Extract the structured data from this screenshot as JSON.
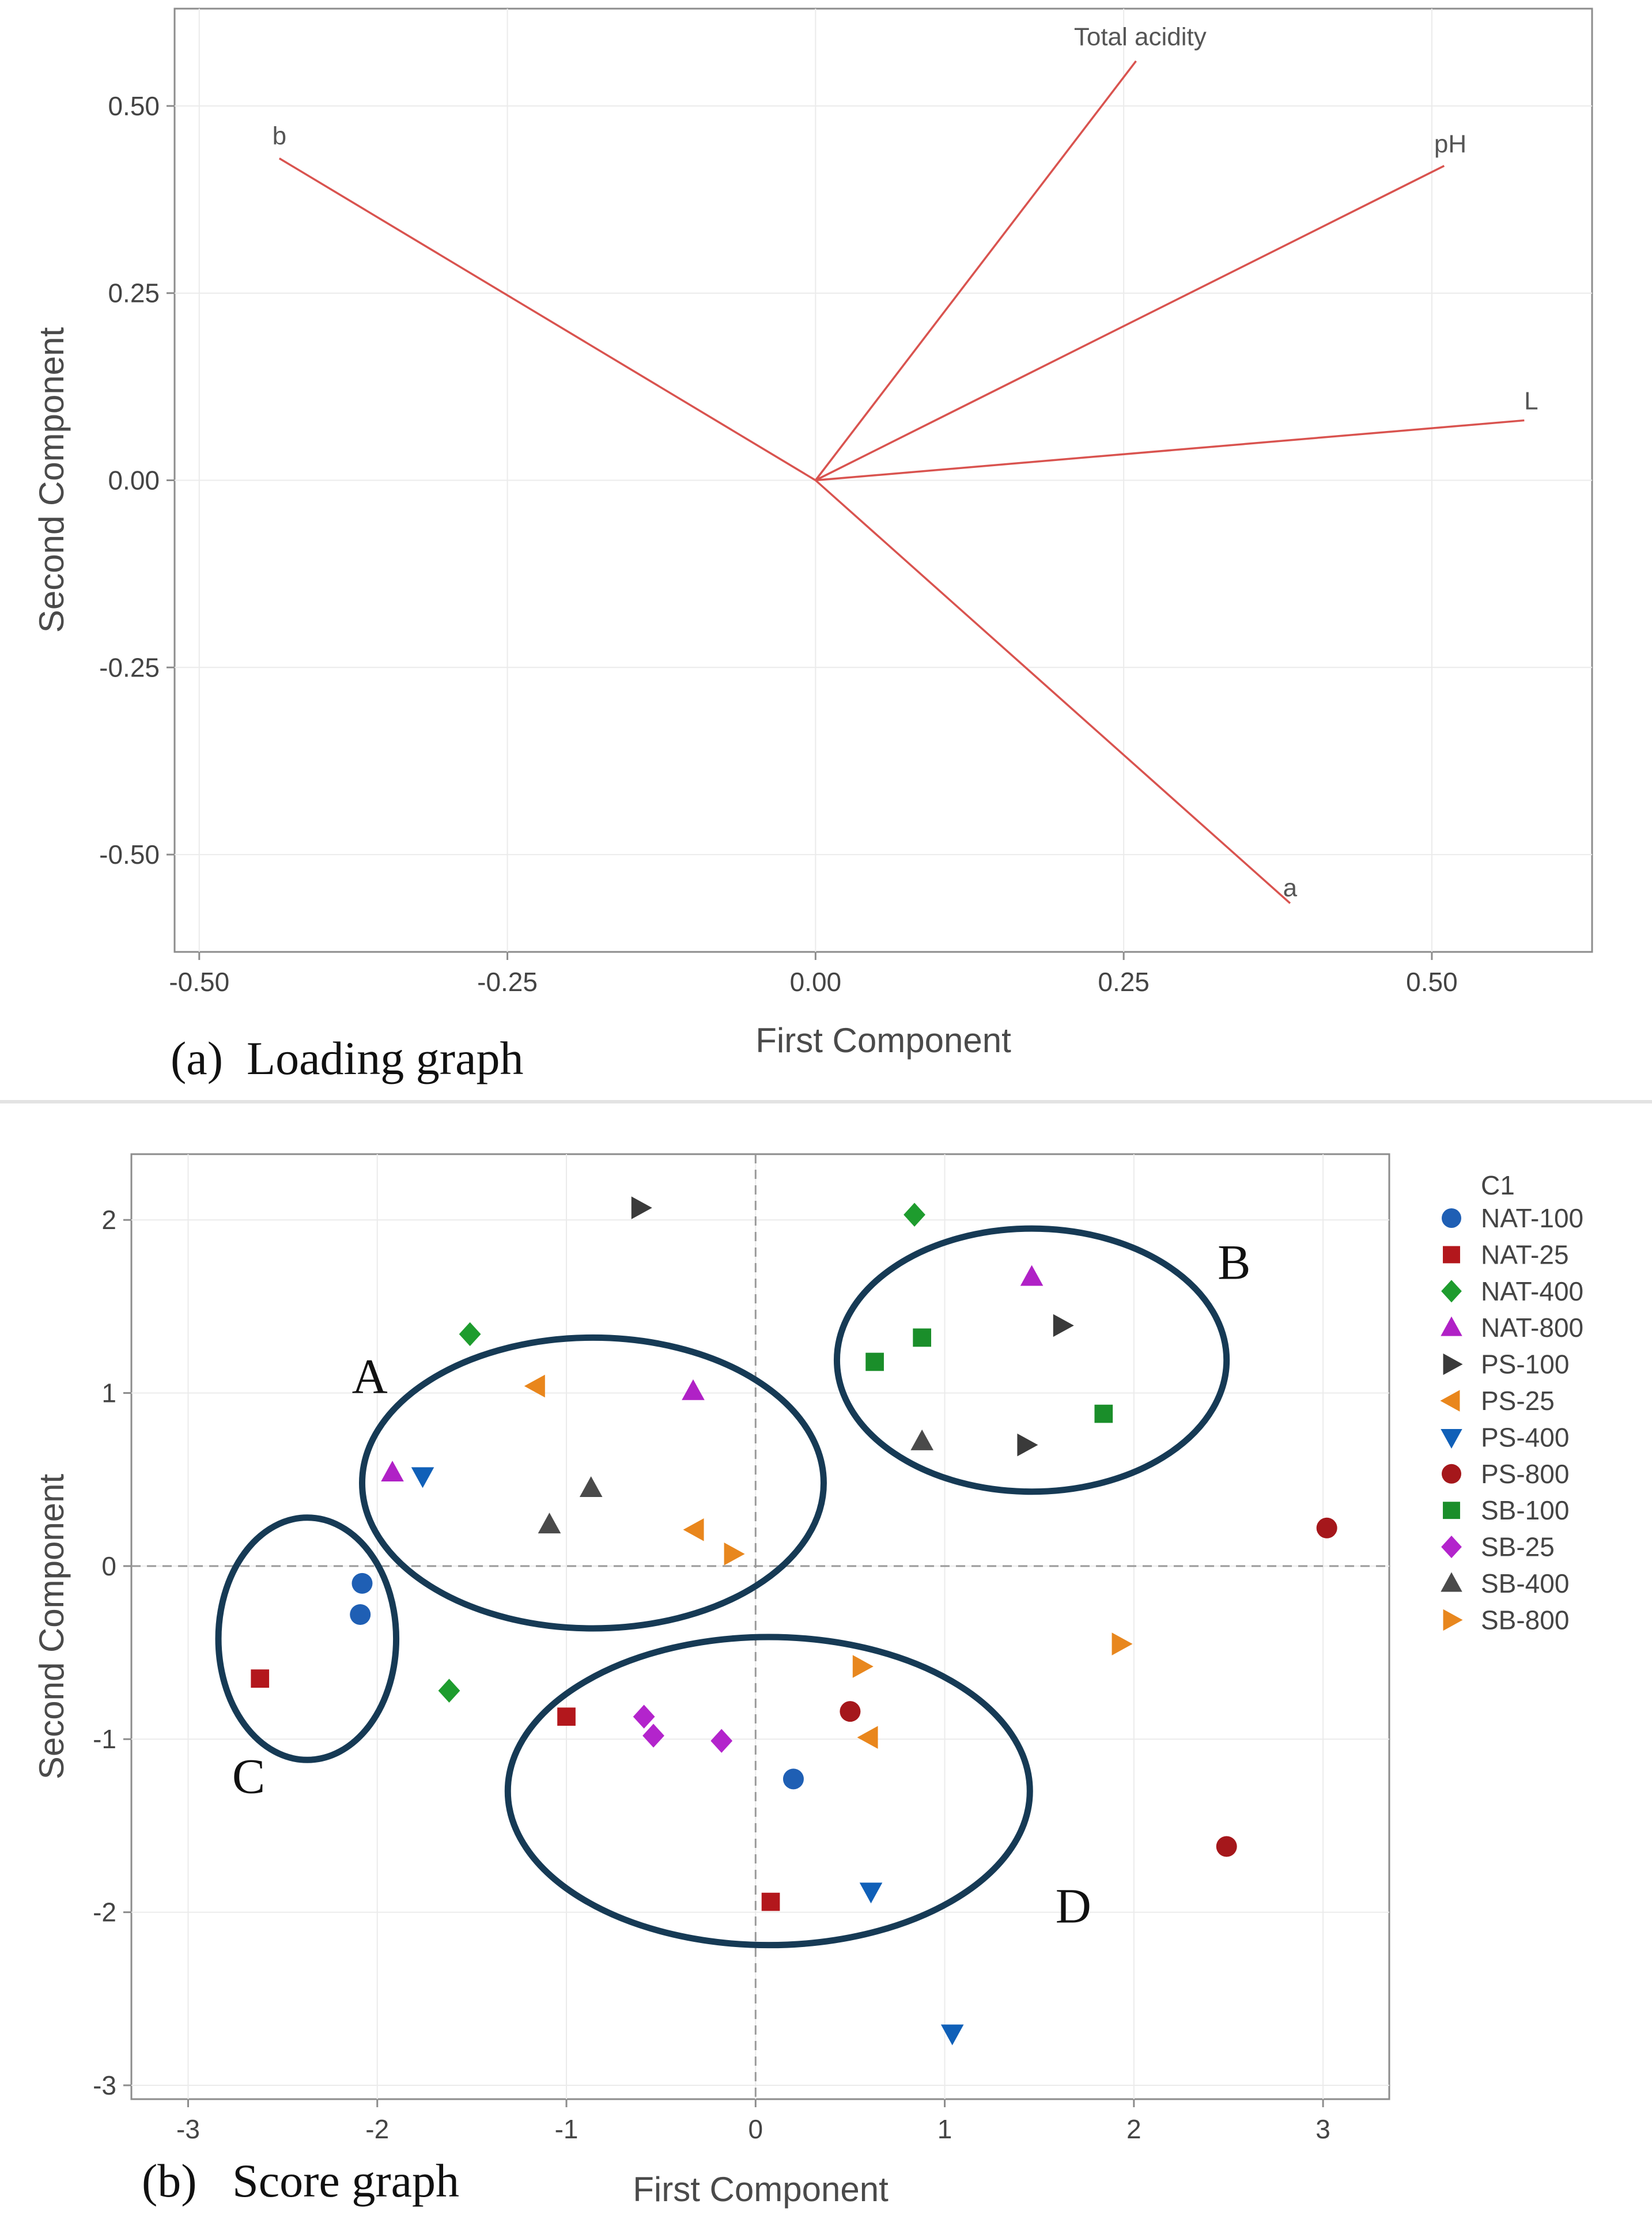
{
  "chart_data": [
    {
      "type": "line",
      "subtype": "pca-loading-plot",
      "caption": "(a)  Loading graph",
      "xlabel": "First Component",
      "ylabel": "Second Component",
      "xlim": [
        -0.52,
        0.63
      ],
      "ylim": [
        -0.63,
        0.63
      ],
      "xticks": [
        -0.5,
        -0.25,
        0.0,
        0.25,
        0.5
      ],
      "xtick_labels": [
        "-0.50",
        "-0.25",
        "0.00",
        "0.25",
        "0.50"
      ],
      "yticks": [
        0.5,
        0.25,
        0.0,
        -0.25,
        -0.5
      ],
      "ytick_labels": [
        "0.50",
        "0.25",
        "0.00",
        "-0.25",
        "-0.50"
      ],
      "grid": true,
      "line_color": "#d9534f",
      "vectors": [
        {
          "label": "Total acidity",
          "x": 0.26,
          "y": 0.56
        },
        {
          "label": "pH",
          "x": 0.51,
          "y": 0.42
        },
        {
          "label": "L",
          "x": 0.575,
          "y": 0.08
        },
        {
          "label": "a",
          "x": 0.385,
          "y": -0.565
        },
        {
          "label": "b",
          "x": -0.435,
          "y": 0.43
        }
      ]
    },
    {
      "type": "scatter",
      "subtype": "pca-score-plot",
      "caption": "(b)   Score graph",
      "xlabel": "First Component",
      "ylabel": "Second Component",
      "xlim": [
        -3.3,
        3.35
      ],
      "ylim": [
        -3.08,
        2.38
      ],
      "xticks": [
        -3,
        -2,
        -1,
        0,
        1,
        2,
        3
      ],
      "xtick_labels": [
        "-3",
        "-2",
        "-1",
        "0",
        "1",
        "2",
        "3"
      ],
      "yticks": [
        2,
        1,
        0,
        -1,
        -2,
        -3
      ],
      "ytick_labels": [
        "2",
        "1",
        "0",
        "-1",
        "-2",
        "-3"
      ],
      "grid": true,
      "reference_lines": {
        "x": 0,
        "y": 0
      },
      "legend_title": "C1",
      "legend_position": "right",
      "series": [
        {
          "name": "NAT-100",
          "marker": "circle",
          "color": "#1f5fb4",
          "points": [
            [
              -2.08,
              -0.1
            ],
            [
              -2.09,
              -0.28
            ],
            [
              0.2,
              -1.23
            ]
          ]
        },
        {
          "name": "NAT-25",
          "marker": "square",
          "color": "#b3171c",
          "points": [
            [
              -2.62,
              -0.65
            ],
            [
              -1.0,
              -0.87
            ],
            [
              0.08,
              -1.94
            ]
          ]
        },
        {
          "name": "NAT-400",
          "marker": "diamond",
          "color": "#1e9c2e",
          "points": [
            [
              -1.51,
              1.34
            ],
            [
              -1.62,
              -0.72
            ],
            [
              0.84,
              2.03
            ]
          ]
        },
        {
          "name": "NAT-800",
          "marker": "triangle-up",
          "color": "#b021c6",
          "points": [
            [
              -1.92,
              0.54
            ],
            [
              -0.33,
              1.01
            ],
            [
              1.46,
              1.67
            ]
          ]
        },
        {
          "name": "PS-100",
          "marker": "triangle-right",
          "color": "#3a3a3a",
          "points": [
            [
              -0.61,
              2.07
            ],
            [
              1.62,
              1.39
            ],
            [
              1.43,
              0.7
            ]
          ]
        },
        {
          "name": "PS-25",
          "marker": "triangle-left",
          "color": "#e9861c",
          "points": [
            [
              -1.16,
              1.04
            ],
            [
              -0.32,
              0.21
            ],
            [
              0.6,
              -0.99
            ]
          ]
        },
        {
          "name": "PS-400",
          "marker": "triangle-down",
          "color": "#1060b8",
          "points": [
            [
              -1.76,
              0.52
            ],
            [
              0.61,
              -1.88
            ],
            [
              1.04,
              -2.7
            ]
          ]
        },
        {
          "name": "PS-800",
          "marker": "circle",
          "color": "#a5171b",
          "points": [
            [
              3.02,
              0.22
            ],
            [
              0.5,
              -0.84
            ],
            [
              2.49,
              -1.62
            ]
          ]
        },
        {
          "name": "SB-100",
          "marker": "square",
          "color": "#1a8e2a",
          "points": [
            [
              0.88,
              1.32
            ],
            [
              0.63,
              1.18
            ],
            [
              1.84,
              0.88
            ]
          ]
        },
        {
          "name": "SB-25",
          "marker": "diamond",
          "color": "#b324cc",
          "points": [
            [
              -0.59,
              -0.87
            ],
            [
              -0.54,
              -0.98
            ],
            [
              -0.18,
              -1.01
            ]
          ]
        },
        {
          "name": "SB-400",
          "marker": "triangle-up",
          "color": "#4a4a4a",
          "points": [
            [
              -0.87,
              0.45
            ],
            [
              -1.09,
              0.24
            ],
            [
              0.88,
              0.72
            ]
          ]
        },
        {
          "name": "SB-800",
          "marker": "triangle-right",
          "color": "#e8871e",
          "points": [
            [
              -0.12,
              0.07
            ],
            [
              0.56,
              -0.58
            ],
            [
              1.93,
              -0.45
            ]
          ]
        }
      ],
      "cluster_color": "#163a55",
      "clusters": [
        {
          "label": "A",
          "cx": -0.86,
          "cy": 0.48,
          "rx": 1.22,
          "ry": 0.84
        },
        {
          "label": "B",
          "cx": 1.46,
          "cy": 1.19,
          "rx": 1.03,
          "ry": 0.76
        },
        {
          "label": "C",
          "cx": -2.37,
          "cy": -0.42,
          "rx": 0.47,
          "ry": 0.7
        },
        {
          "label": "D",
          "cx": 0.07,
          "cy": -1.3,
          "rx": 1.38,
          "ry": 0.89
        }
      ]
    }
  ]
}
